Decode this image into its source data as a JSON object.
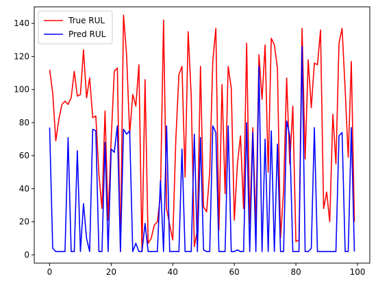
{
  "chart_data": {
    "type": "line",
    "title": "",
    "xlabel": "",
    "ylabel": "",
    "xlim": [
      -5,
      104
    ],
    "ylim": [
      -5,
      150
    ],
    "xticks": [
      0,
      20,
      40,
      60,
      80,
      100
    ],
    "yticks": [
      0,
      20,
      40,
      60,
      80,
      100,
      120,
      140
    ],
    "grid": false,
    "legend_position": "top-left",
    "x": [
      0,
      1,
      2,
      3,
      4,
      5,
      6,
      7,
      8,
      9,
      10,
      11,
      12,
      13,
      14,
      15,
      16,
      17,
      18,
      19,
      20,
      21,
      22,
      23,
      24,
      25,
      26,
      27,
      28,
      29,
      30,
      31,
      32,
      33,
      34,
      35,
      36,
      37,
      38,
      39,
      40,
      41,
      42,
      43,
      44,
      45,
      46,
      47,
      48,
      49,
      50,
      51,
      52,
      53,
      54,
      55,
      56,
      57,
      58,
      59,
      60,
      61,
      62,
      63,
      64,
      65,
      66,
      67,
      68,
      69,
      70,
      71,
      72,
      73,
      74,
      75,
      76,
      77,
      78,
      79,
      80,
      81,
      82,
      83,
      84,
      85,
      86,
      87,
      88,
      89,
      90,
      91,
      92,
      93,
      94,
      95,
      96,
      97,
      98,
      99
    ],
    "series": [
      {
        "name": "True RUL",
        "color": "#ff0000",
        "values": [
          112,
          98,
          69,
          82,
          91,
          93,
          91,
          95,
          111,
          96,
          97,
          124,
          95,
          107,
          83,
          84,
          49,
          28,
          87,
          21,
          70,
          111,
          113,
          2,
          145,
          121,
          73,
          97,
          90,
          115,
          2,
          106,
          7,
          10,
          18,
          20,
          36,
          142,
          28,
          18,
          9,
          70,
          109,
          114,
          47,
          135,
          96,
          5,
          15,
          114,
          29,
          26,
          50,
          117,
          137,
          15,
          103,
          37,
          114,
          101,
          21,
          55,
          72,
          28,
          128,
          19,
          77,
          17,
          121,
          94,
          127,
          50,
          131,
          127,
          113,
          10,
          39,
          107,
          55,
          90,
          8,
          9,
          137,
          58,
          118,
          89,
          116,
          115,
          136,
          28,
          38,
          20,
          85,
          55,
          128,
          137,
          100,
          59,
          117,
          20
        ]
      },
      {
        "name": "Pred RUL",
        "color": "#0000ff",
        "values": [
          77,
          4,
          2,
          2,
          2,
          2,
          71,
          2,
          2,
          63,
          2,
          31,
          10,
          2,
          76,
          75,
          2,
          2,
          68,
          2,
          64,
          62,
          78,
          2,
          76,
          73,
          75,
          2,
          7,
          2,
          2,
          19,
          2,
          2,
          2,
          2,
          45,
          2,
          78,
          2,
          2,
          2,
          2,
          64,
          2,
          2,
          2,
          73,
          2,
          71,
          3,
          2,
          2,
          78,
          74,
          2,
          2,
          2,
          78,
          2,
          2,
          3,
          2,
          2,
          80,
          2,
          74,
          2,
          114,
          2,
          70,
          2,
          75,
          2,
          67,
          2,
          2,
          81,
          72,
          2,
          2,
          2,
          126,
          2,
          2,
          4,
          77,
          2,
          2,
          2,
          2,
          2,
          2,
          2,
          72,
          74,
          2,
          2,
          77,
          2
        ]
      }
    ]
  }
}
